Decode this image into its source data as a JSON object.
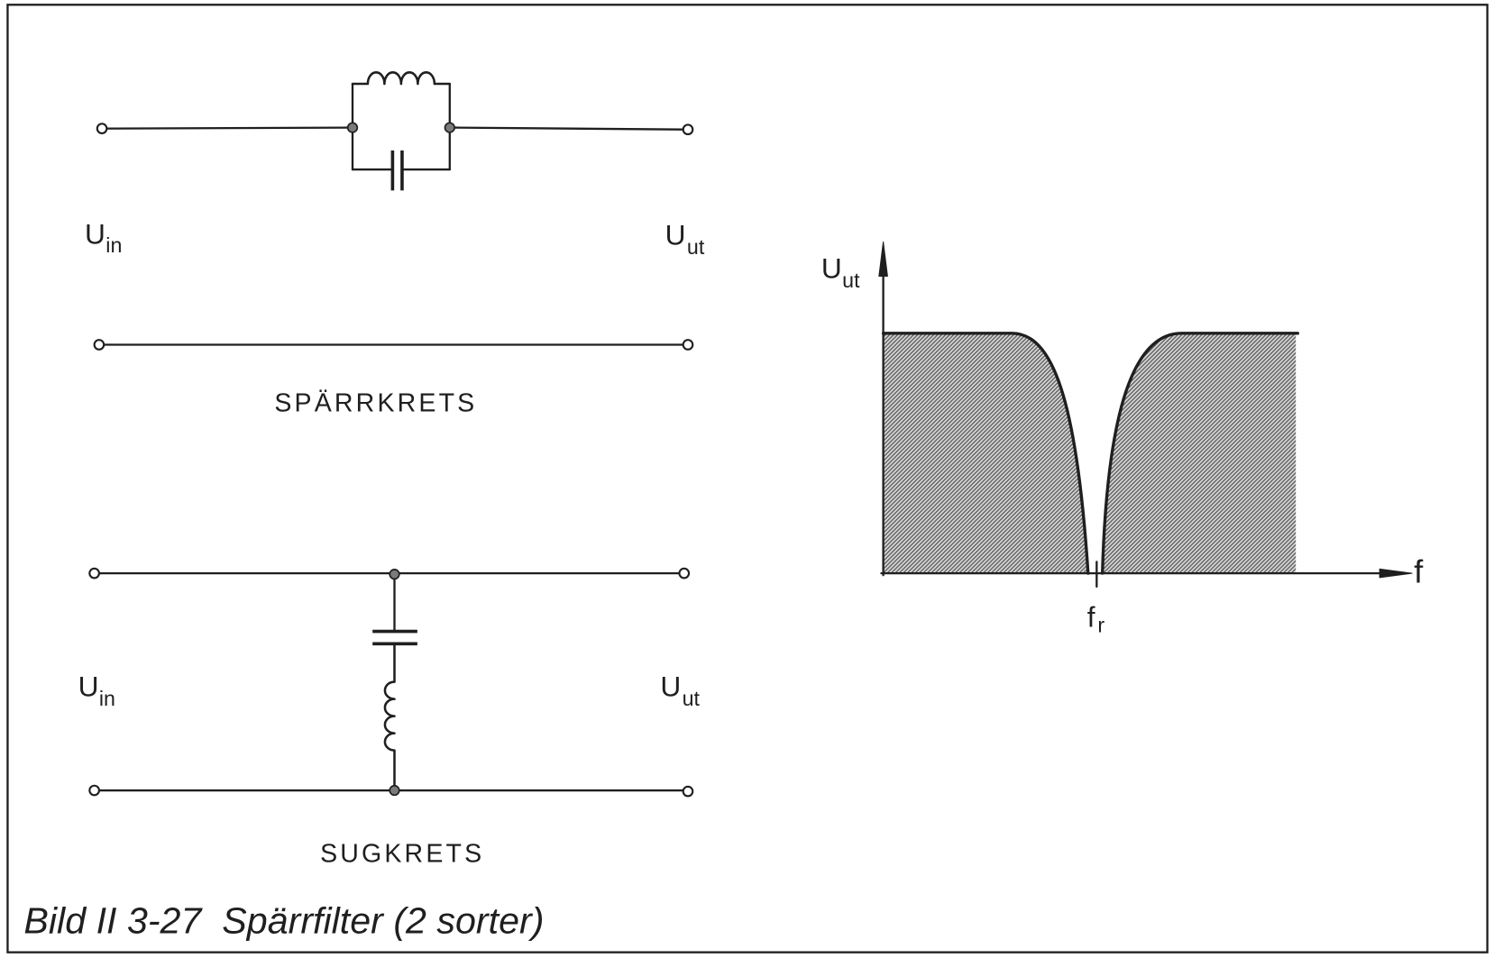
{
  "caption": "Bild II 3-27  Spärrfilter (2 sorter)",
  "sparrkrets": {
    "title": "SPÄRRKRETS",
    "input_label": {
      "main": "U",
      "sub": "in"
    },
    "output_label": {
      "main": "U",
      "sub": "ut"
    }
  },
  "sugkrets": {
    "title": "SUGKRETS",
    "input_label": {
      "main": "U",
      "sub": "in"
    },
    "output_label": {
      "main": "U",
      "sub": "ut"
    }
  },
  "response_graph": {
    "y_axis_label": {
      "main": "U",
      "sub": "ut"
    },
    "x_axis_label": "f",
    "resonance_marker_label": {
      "main": "f",
      "sub": "r"
    }
  },
  "colors": {
    "ink": "#1f1f1f",
    "node_fill": "#7a7a7a",
    "hatch_line": "#4d4d4d",
    "hatch_background": "#d6d6d6",
    "paper": "#ffffff"
  }
}
